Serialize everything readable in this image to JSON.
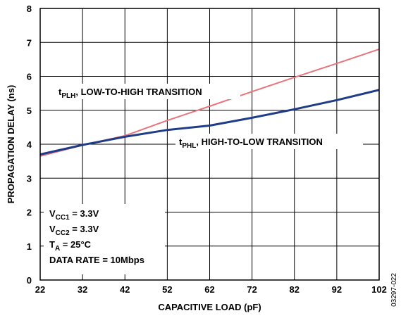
{
  "chart_data": {
    "type": "line",
    "xlabel": "CAPACITIVE LOAD (pF)",
    "ylabel": "PROPAGATION DELAY (ns)",
    "xlim": [
      22,
      102
    ],
    "ylim": [
      0,
      8
    ],
    "x_ticks": [
      "22",
      "32",
      "42",
      "52",
      "62",
      "72",
      "82",
      "92",
      "102"
    ],
    "y_ticks": [
      "0",
      "1",
      "2",
      "3",
      "4",
      "5",
      "6",
      "7",
      "8"
    ],
    "grid": true,
    "series": [
      {
        "name_main": "t",
        "name_sub": "PLH",
        "name_rest": ", LOW-TO-HIGH TRANSITION",
        "color": "#e8747c",
        "x": [
          22,
          32,
          42,
          52,
          62,
          72,
          82,
          92,
          102
        ],
        "y": [
          3.65,
          3.97,
          4.25,
          4.7,
          5.12,
          5.55,
          5.97,
          6.38,
          6.8
        ]
      },
      {
        "name_main": "t",
        "name_sub": "PHL",
        "name_rest": ", HIGH-TO-LOW TRANSITION",
        "color": "#1f3c88",
        "x": [
          22,
          32,
          42,
          52,
          62,
          72,
          82,
          92,
          102
        ],
        "y": [
          3.7,
          3.98,
          4.22,
          4.42,
          4.55,
          4.78,
          5.03,
          5.3,
          5.6
        ]
      }
    ],
    "conditions": [
      {
        "main": "V",
        "sub": "CC1",
        "rest": " = 3.3V"
      },
      {
        "main": "V",
        "sub": "CC2",
        "rest": " = 3.3V"
      },
      {
        "main": "T",
        "sub": "A",
        "rest": " = 25°C"
      },
      {
        "main": "DATA RATE = 10Mbps",
        "sub": "",
        "rest": ""
      }
    ],
    "figure_code": "03297-022"
  }
}
